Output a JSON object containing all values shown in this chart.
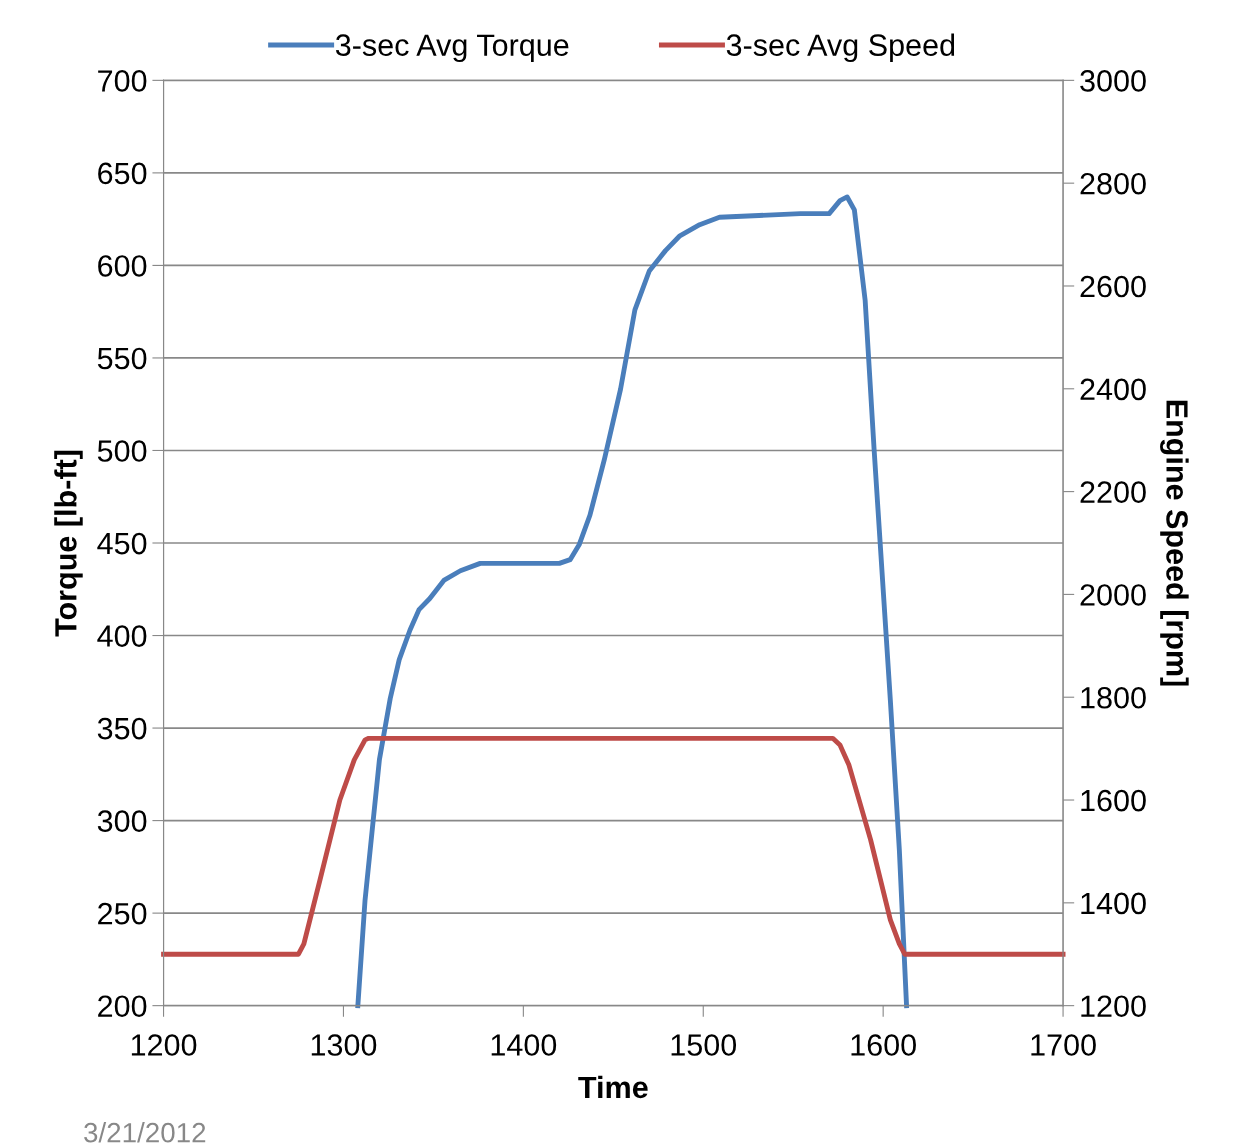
{
  "chart_data": {
    "type": "line",
    "xlabel": "Time",
    "ylabel": "Torque [lb-ft]",
    "y2label": "Engine Speed [rpm]",
    "xlim": [
      1200,
      1700
    ],
    "xticks": [
      1200,
      1300,
      1400,
      1500,
      1600,
      1700
    ],
    "ylim": [
      200,
      700
    ],
    "yticks": [
      200,
      250,
      300,
      350,
      400,
      450,
      500,
      550,
      600,
      650,
      700
    ],
    "y2lim": [
      1200,
      3000
    ],
    "y2ticks": [
      1200,
      1400,
      1600,
      1800,
      2000,
      2200,
      2400,
      2600,
      2800,
      3000
    ],
    "grid": "y",
    "legend": "top",
    "line_style": "solid",
    "marker": "none",
    "annotations": [
      "3/21/2012"
    ],
    "series": [
      {
        "name": "3-sec Avg Torque",
        "color": "#4a7ebb",
        "x": [
          1308,
          1312,
          1316,
          1320,
          1326,
          1331,
          1337,
          1342,
          1348,
          1356,
          1365,
          1376,
          1398,
          1420,
          1426,
          1431,
          1437,
          1445,
          1454,
          1462,
          1470,
          1479,
          1487,
          1498,
          1509,
          1531,
          1554,
          1570,
          1576,
          1580,
          1584,
          1590,
          1595,
          1604,
          1609,
          1613
        ],
        "values": [
          200,
          257,
          295,
          333,
          366,
          387,
          403,
          414,
          420,
          430,
          435,
          439,
          439,
          439,
          441,
          449,
          465,
          495,
          533,
          576,
          597,
          608,
          616,
          622,
          626,
          627,
          628,
          628,
          635,
          637,
          630,
          581,
          500,
          365,
          284,
          200
        ]
      },
      {
        "name": "3-sec Avg Speed",
        "color": "#be4b48",
        "axis": "y2",
        "x": [
          1200,
          1275,
          1278,
          1287,
          1298,
          1306,
          1312,
          1314,
          1572,
          1576,
          1581,
          1593,
          1604,
          1609,
          1612,
          1700
        ],
        "values": [
          1300,
          1300,
          1320,
          1445,
          1600,
          1678,
          1717,
          1720,
          1720,
          1707,
          1668,
          1523,
          1367,
          1320,
          1300,
          1300
        ]
      }
    ]
  }
}
